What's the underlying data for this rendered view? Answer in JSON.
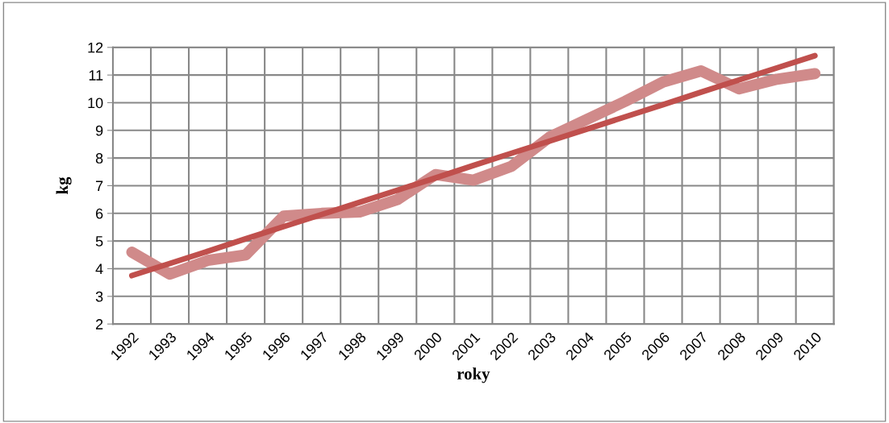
{
  "chart_data": {
    "type": "line",
    "xlabel": "roky",
    "ylabel": "kg",
    "categories": [
      "1992",
      "1993",
      "1994",
      "1995",
      "1996",
      "1997",
      "1998",
      "1999",
      "2000",
      "2001",
      "2002",
      "2003",
      "2004",
      "2005",
      "2006",
      "2007",
      "2008",
      "2009",
      "2010"
    ],
    "series": [
      {
        "color": "#d08a8a",
        "values": [
          4.6,
          3.8,
          4.3,
          4.5,
          5.9,
          6.0,
          6.05,
          6.5,
          7.4,
          7.2,
          7.7,
          8.75,
          9.4,
          10.05,
          10.75,
          11.15,
          10.5,
          10.85,
          11.05
        ]
      },
      {
        "color": "#c0504d",
        "values": [
          3.75,
          4.19,
          4.63,
          5.08,
          5.52,
          5.96,
          6.4,
          6.84,
          7.28,
          7.73,
          8.17,
          8.61,
          9.05,
          9.49,
          9.93,
          10.38,
          10.82,
          11.26,
          11.7
        ]
      }
    ],
    "ylim": [
      2,
      12
    ],
    "yticks": [
      2,
      3,
      4,
      5,
      6,
      7,
      8,
      9,
      10,
      11,
      12
    ],
    "grid": true
  }
}
